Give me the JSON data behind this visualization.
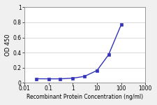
{
  "x": [
    0.03,
    0.1,
    0.3,
    1,
    3,
    10,
    30,
    100
  ],
  "y": [
    0.052,
    0.051,
    0.051,
    0.06,
    0.083,
    0.162,
    0.37,
    0.77
  ],
  "line_color": "#3333BB",
  "marker_color": "#3333BB",
  "marker_style": "s",
  "marker_size": 2.5,
  "line_width": 1.0,
  "xlabel": "Recombinant Protein Concentration (ng/ml)",
  "ylabel": "OD 450",
  "xlim": [
    0.01,
    1000
  ],
  "ylim": [
    0,
    1.0
  ],
  "yticks": [
    0,
    0.2,
    0.4,
    0.6,
    0.8,
    1.0
  ],
  "ytick_labels": [
    "0",
    "0.2",
    "0.4",
    "0.6",
    "0.8",
    "1"
  ],
  "xticks": [
    0.01,
    0.1,
    1,
    10,
    100,
    1000
  ],
  "xtick_labels": [
    "0.01",
    "0.1",
    "1",
    "10",
    "100",
    "1000"
  ],
  "plot_bg": "#ffffff",
  "fig_bg": "#f0f0f0",
  "grid_color": "#cccccc",
  "xlabel_fontsize": 5.5,
  "ylabel_fontsize": 6.0,
  "tick_fontsize": 5.5
}
